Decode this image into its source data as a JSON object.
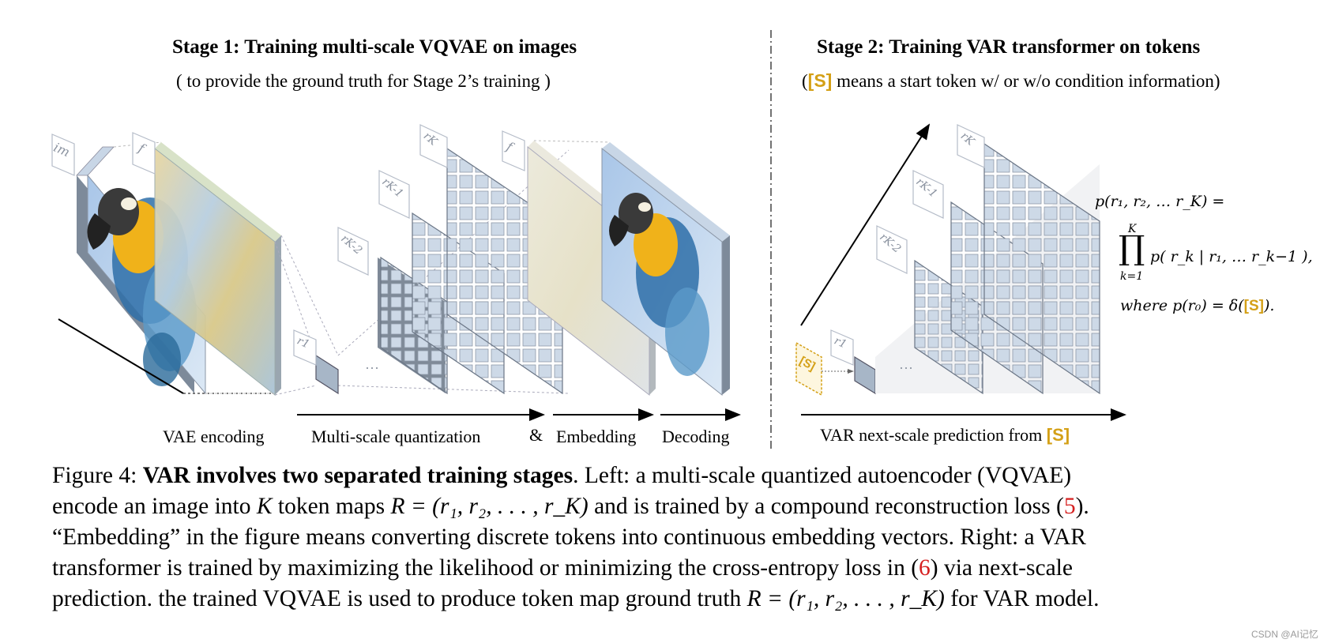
{
  "stage1": {
    "title": "Stage 1:  Training multi-scale VQVAE on images",
    "subtitle": "( to provide the ground truth for Stage 2’s training )"
  },
  "stage2": {
    "title": "Stage 2:  Training VAR transformer on tokens",
    "subtitle_open": "(",
    "subtitle_token": "[S]",
    "subtitle_rest": " means a start token w/ or w/o condition information)"
  },
  "left_labels": {
    "vae_encoding": "VAE encoding",
    "multi_scale": "Multi-scale quantization",
    "ampersand": "&",
    "embedding": "Embedding",
    "decoding": "Decoding"
  },
  "right_label": {
    "text": "VAR next-scale prediction from ",
    "token": "[S]"
  },
  "tags": {
    "im": "im",
    "f": "f",
    "r1": "r1",
    "rK2": "rK-2",
    "rK1": "rK-1",
    "rK": "rK",
    "dots": "···",
    "start": "[S]"
  },
  "formula": {
    "line1": "p(r₁, r₂, … r_K) =",
    "prod_top": "K",
    "prod_sym": "∏",
    "prod_bottom": "k=1",
    "line2": "p( r_k | r₁, … r_k−1 ),",
    "line3_pre": "where  p(r₀) = δ(",
    "line3_token": "[S]",
    "line3_post": ")."
  },
  "caption": {
    "figure": "Figure 4: ",
    "bold": "VAR involves two separated training stages",
    "l1_rest": ". Left: a multi-scale quantized autoencoder (VQVAE)",
    "l2_a": "encode an image into ",
    "l2_K": "K",
    "l2_b": " token maps ",
    "l2_R": "R = (r₁, r₂, . . . , r_K)",
    "l2_c": " and is trained by a compound reconstruction loss (",
    "l2_ref": "5",
    "l2_d": ").",
    "l3": "“Embedding” in the figure means converting discrete tokens into continuous embedding vectors. Right: a VAR",
    "l4_a": "transformer is trained by maximizing the likelihood or minimizing the cross-entropy loss in (",
    "l4_ref": "6",
    "l4_b": ") via next-scale",
    "l5_a": "prediction. the trained VQVAE is used to produce token map ground truth ",
    "l5_R": "R = (r₁, r₂, . . . , r_K)",
    "l5_b": " for VAR model."
  },
  "watermark": "CSDN @AI记忆",
  "colors": {
    "gold": "#d4a017",
    "ref_red": "#d62020",
    "grid_cell": "#c9d6e6",
    "grid_line": "#6b7686"
  }
}
